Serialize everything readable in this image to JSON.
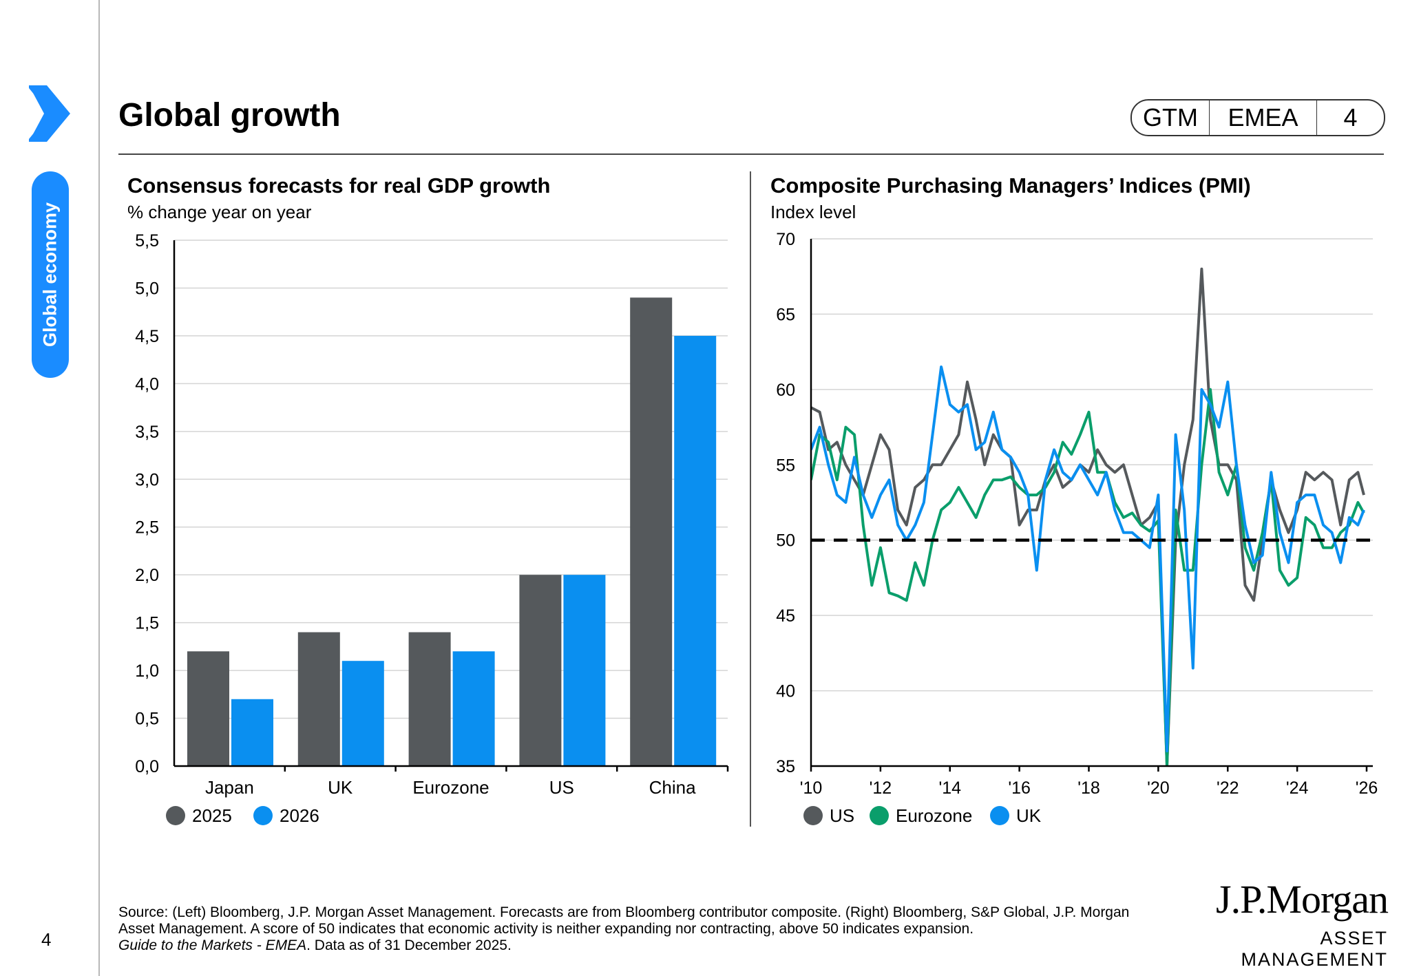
{
  "page": {
    "title": "Global growth",
    "section": "Global economy",
    "page_number": "4",
    "badge": [
      "GTM",
      "EMEA",
      "4"
    ],
    "colors": {
      "accent": "#1a8cff",
      "grey": "#55595c",
      "blue": "#0a8ff0",
      "green": "#0a9e6b"
    }
  },
  "footer": {
    "line1": "Source: (Left) Bloomberg, J.P. Morgan Asset Management. Forecasts are from Bloomberg contributor composite. (Right) Bloomberg, S&P Global, J.P. Morgan",
    "line2": "Asset Management. A score of 50 indicates that economic activity is neither expanding nor contracting, above 50 indicates expansion.",
    "line3_italic": "Guide to the Markets - EMEA",
    "line3_rest": ". Data as of 31 December 2025.",
    "logo_main": "J.P.Morgan",
    "logo_sub": "ASSET MANAGEMENT"
  },
  "chart_data": [
    {
      "type": "bar",
      "title": "Consensus forecasts for real GDP growth",
      "subtitle": "% change year on year",
      "categories": [
        "Japan",
        "UK",
        "Eurozone",
        "US",
        "China"
      ],
      "series": [
        {
          "name": "2025",
          "color": "#55595c",
          "values": [
            1.2,
            1.4,
            1.4,
            2.0,
            4.9
          ]
        },
        {
          "name": "2026",
          "color": "#0a8ff0",
          "values": [
            0.7,
            1.1,
            1.2,
            2.0,
            4.5
          ]
        }
      ],
      "ylim": [
        0,
        5.5
      ],
      "yticks": [
        "0,0",
        "0,5",
        "1,0",
        "1,5",
        "2,0",
        "2,5",
        "3,0",
        "3,5",
        "4,0",
        "4,5",
        "5,0",
        "5,5"
      ],
      "grid": true,
      "legend": "bottom-left"
    },
    {
      "type": "line",
      "title": "Composite Purchasing Managers’ Indices (PMI)",
      "subtitle": "Index level",
      "x": [
        2010,
        2010.25,
        2010.5,
        2010.75,
        2011,
        2011.25,
        2011.5,
        2011.75,
        2012,
        2012.25,
        2012.5,
        2012.75,
        2013,
        2013.25,
        2013.5,
        2013.75,
        2014,
        2014.25,
        2014.5,
        2014.75,
        2015,
        2015.25,
        2015.5,
        2015.75,
        2016,
        2016.25,
        2016.5,
        2016.75,
        2017,
        2017.25,
        2017.5,
        2017.75,
        2018,
        2018.25,
        2018.5,
        2018.75,
        2019,
        2019.25,
        2019.5,
        2019.75,
        2020,
        2020.25,
        2020.5,
        2020.75,
        2021,
        2021.25,
        2021.5,
        2021.75,
        2022,
        2022.25,
        2022.5,
        2022.75,
        2023,
        2023.25,
        2023.5,
        2023.75,
        2024,
        2024.25,
        2024.5,
        2024.75,
        2025,
        2025.25,
        2025.5,
        2025.75,
        2025.92
      ],
      "series": [
        {
          "name": "US",
          "color": "#55595c",
          "values": [
            58.8,
            58.5,
            56,
            56.5,
            55,
            54,
            53,
            55,
            57,
            56,
            52,
            51,
            53.5,
            54,
            55,
            55,
            56,
            57,
            60.5,
            58,
            55,
            57,
            56,
            55.5,
            51,
            52,
            52,
            54,
            55,
            53.5,
            54,
            55,
            54.5,
            56,
            55,
            54.5,
            55,
            53,
            51,
            51.5,
            52.5,
            35,
            50,
            55,
            58,
            68,
            58,
            55,
            55,
            54,
            47,
            46,
            50,
            54,
            52,
            50.5,
            52,
            54.5,
            54,
            54.5,
            54,
            51,
            54,
            54.5,
            53
          ]
        },
        {
          "name": "Eurozone",
          "color": "#0a9e6b",
          "values": [
            54,
            57,
            56.5,
            54,
            57.5,
            57,
            51,
            47,
            49.5,
            46.5,
            46.3,
            46,
            48.5,
            47,
            50,
            52,
            52.5,
            53.5,
            52.5,
            51.5,
            53,
            54,
            54,
            54.2,
            53.5,
            53,
            53,
            53.5,
            54.5,
            56.5,
            55.7,
            57,
            58.5,
            54.5,
            54.5,
            52.5,
            51.5,
            51.8,
            51,
            50.6,
            51.3,
            35,
            52,
            48,
            48,
            55,
            60,
            54.5,
            53,
            55,
            49.5,
            48,
            50.5,
            54,
            48,
            47,
            47.5,
            51.5,
            51,
            49.5,
            49.5,
            50.5,
            51,
            52.5,
            51.8
          ]
        },
        {
          "name": "UK",
          "color": "#0a8ff0",
          "values": [
            56,
            57.5,
            55,
            53,
            52.5,
            55.5,
            53,
            51.5,
            53,
            54,
            51,
            50,
            51,
            52.5,
            57,
            61.5,
            59,
            58.5,
            59,
            56,
            56.5,
            58.5,
            56,
            55.5,
            54.5,
            53,
            48,
            54,
            56,
            54.5,
            54,
            55,
            54,
            53,
            54.5,
            52,
            50.5,
            50.5,
            50,
            49.5,
            53,
            36,
            57,
            52,
            41.5,
            60,
            59,
            57.5,
            60.5,
            55,
            51,
            48.5,
            49,
            54.5,
            50.5,
            48.5,
            52.5,
            53,
            53,
            51,
            50.5,
            48.5,
            51.5,
            51,
            52
          ]
        }
      ],
      "reference_line": 50,
      "ylim": [
        35,
        70
      ],
      "yticks": [
        "35",
        "40",
        "45",
        "50",
        "55",
        "60",
        "65",
        "70"
      ],
      "xlim": [
        2010,
        2026
      ],
      "xticks": [
        "'10",
        "'12",
        "'14",
        "'16",
        "'18",
        "'20",
        "'22",
        "'24",
        "'26"
      ],
      "grid": true,
      "legend": "bottom-left"
    }
  ]
}
